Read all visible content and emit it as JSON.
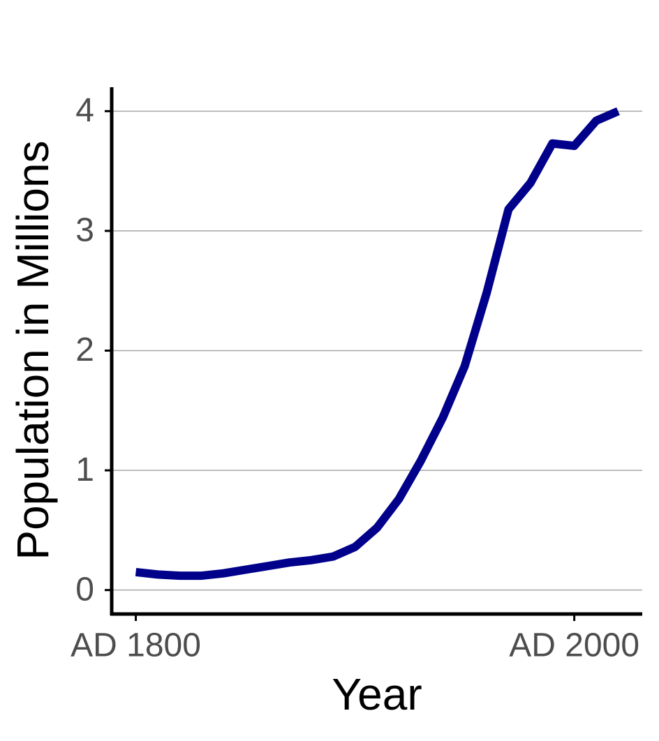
{
  "chart_data": {
    "type": "line",
    "x_label": "Year",
    "y_label": "Population in Millions",
    "x": [
      1800,
      1810,
      1820,
      1830,
      1840,
      1850,
      1860,
      1870,
      1880,
      1890,
      1900,
      1910,
      1920,
      1930,
      1940,
      1950,
      1960,
      1970,
      1980,
      1990,
      2000,
      2010,
      2020
    ],
    "series": [
      {
        "color": "#00008b",
        "values": [
          0.15,
          0.13,
          0.12,
          0.12,
          0.14,
          0.17,
          0.2,
          0.23,
          0.25,
          0.28,
          0.36,
          0.52,
          0.76,
          1.08,
          1.44,
          1.87,
          2.48,
          3.18,
          3.4,
          3.73,
          3.71,
          3.92,
          4.0
        ]
      }
    ],
    "xlim": [
      1789,
      2031
    ],
    "ylim": [
      -0.2,
      4.2
    ],
    "xticks": [
      {
        "value": 1800,
        "label": "AD 1800"
      },
      {
        "value": 2000,
        "label": "AD 2000"
      }
    ],
    "yticks": [
      0,
      1,
      2,
      3,
      4
    ],
    "grid": true
  }
}
